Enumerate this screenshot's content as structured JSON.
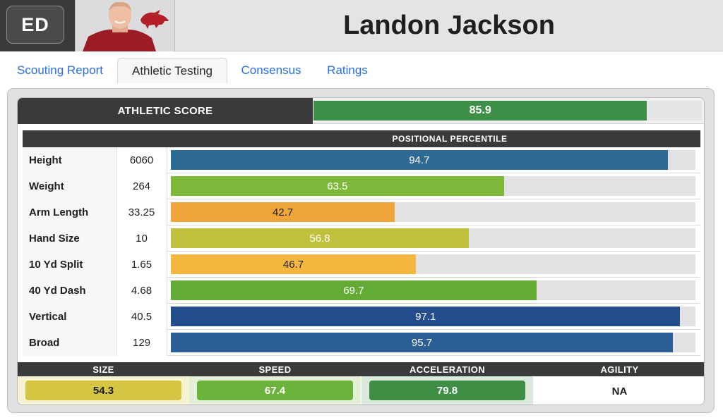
{
  "header": {
    "position": "ED",
    "player_name": "Landon Jackson"
  },
  "tabs": [
    {
      "label": "Scouting Report",
      "active": false
    },
    {
      "label": "Athletic Testing",
      "active": true
    },
    {
      "label": "Consensus",
      "active": false
    },
    {
      "label": "Ratings",
      "active": false
    }
  ],
  "athletic_score": {
    "label": "ATHLETIC SCORE",
    "value": "85.9",
    "percent": 85.9,
    "color": "#3d8f48"
  },
  "percentile_header": "POSITIONAL PERCENTILE",
  "measurements": [
    {
      "label": "Height",
      "value": "6060",
      "percentile": "94.7",
      "pct": 94.7,
      "color": "#2e6b94",
      "text_color": "#ffffff"
    },
    {
      "label": "Weight",
      "value": "264",
      "percentile": "63.5",
      "pct": 63.5,
      "color": "#7db83a",
      "text_color": "#ffffff"
    },
    {
      "label": "Arm Length",
      "value": "33.25",
      "percentile": "42.7",
      "pct": 42.7,
      "color": "#efa53a",
      "text_color": "#1f1f22"
    },
    {
      "label": "Hand Size",
      "value": "10",
      "percentile": "56.8",
      "pct": 56.8,
      "color": "#bfc13c",
      "text_color": "#ffffff"
    },
    {
      "label": "10 Yd Split",
      "value": "1.65",
      "percentile": "46.7",
      "pct": 46.7,
      "color": "#f3b73f",
      "text_color": "#1f1f22"
    },
    {
      "label": "40 Yd Dash",
      "value": "4.68",
      "percentile": "69.7",
      "pct": 69.7,
      "color": "#63ab35",
      "text_color": "#ffffff"
    },
    {
      "label": "Vertical",
      "value": "40.5",
      "percentile": "97.1",
      "pct": 97.1,
      "color": "#234d8c",
      "text_color": "#ffffff"
    },
    {
      "label": "Broad",
      "value": "129",
      "percentile": "95.7",
      "pct": 95.7,
      "color": "#2c5f96",
      "text_color": "#ffffff"
    }
  ],
  "summary": [
    {
      "label": "SIZE",
      "value": "54.3",
      "color": "#d4c643",
      "bg": "#f6f3d3",
      "text_color": "#1a1a1c"
    },
    {
      "label": "SPEED",
      "value": "67.4",
      "color": "#6bb33b",
      "bg": "#e3efd6",
      "text_color": "#ffffff"
    },
    {
      "label": "ACCELERATION",
      "value": "79.8",
      "color": "#3e8e45",
      "bg": "#dbe9dc",
      "text_color": "#ffffff"
    },
    {
      "label": "AGILITY",
      "value": "NA",
      "color": null,
      "bg": "#ffffff",
      "text_color": "#1a1a1c"
    }
  ]
}
